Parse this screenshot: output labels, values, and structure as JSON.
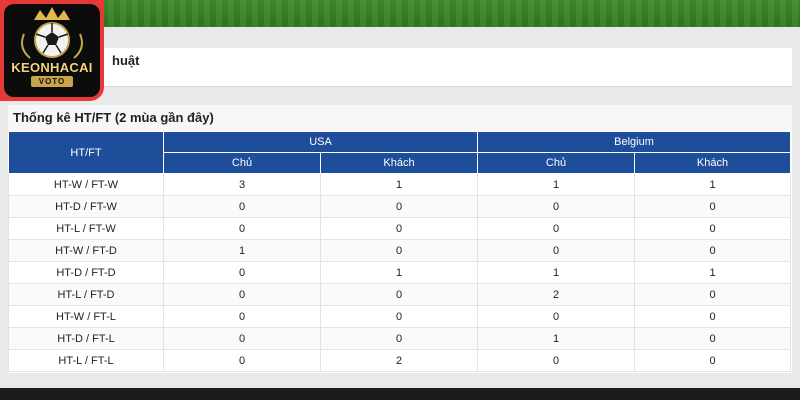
{
  "logo": {
    "name": "KEONHACAI",
    "sub": "VOTO"
  },
  "section": {
    "partial_label": "huật"
  },
  "stats": {
    "title": "Thống kê HT/FT (2 mùa gần đây)",
    "row_header": "HT/FT",
    "teams": [
      "USA",
      "Belgium"
    ],
    "sub_headers": [
      "Chủ",
      "Khách",
      "Chủ",
      "Khách"
    ],
    "rows": [
      {
        "label": "HT-W / FT-W",
        "values": [
          "3",
          "1",
          "1",
          "1"
        ]
      },
      {
        "label": "HT-D / FT-W",
        "values": [
          "0",
          "0",
          "0",
          "0"
        ]
      },
      {
        "label": "HT-L / FT-W",
        "values": [
          "0",
          "0",
          "0",
          "0"
        ]
      },
      {
        "label": "HT-W / FT-D",
        "values": [
          "1",
          "0",
          "0",
          "0"
        ]
      },
      {
        "label": "HT-D / FT-D",
        "values": [
          "0",
          "1",
          "1",
          "1"
        ]
      },
      {
        "label": "HT-L / FT-D",
        "values": [
          "0",
          "0",
          "2",
          "0"
        ]
      },
      {
        "label": "HT-W / FT-L",
        "values": [
          "0",
          "0",
          "0",
          "0"
        ]
      },
      {
        "label": "HT-D / FT-L",
        "values": [
          "0",
          "0",
          "1",
          "0"
        ]
      },
      {
        "label": "HT-L / FT-L",
        "values": [
          "0",
          "2",
          "0",
          "0"
        ]
      }
    ]
  }
}
